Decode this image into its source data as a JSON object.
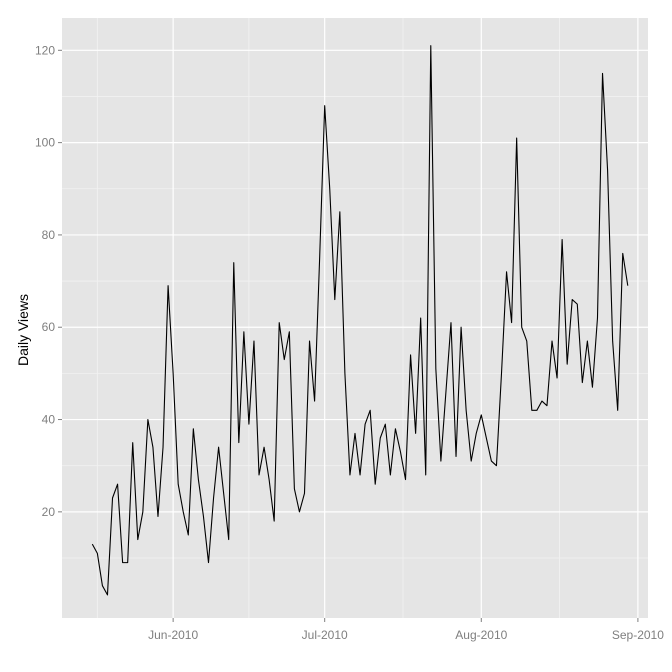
{
  "chart_data": {
    "type": "line",
    "title": "",
    "xlabel": "",
    "ylabel": "Daily Views",
    "x_start": "2010-05-16",
    "x_ticks": [
      {
        "date": "2010-06-01",
        "label": "Jun-2010"
      },
      {
        "date": "2010-07-01",
        "label": "Jul-2010"
      },
      {
        "date": "2010-08-01",
        "label": "Aug-2010"
      },
      {
        "date": "2010-09-01",
        "label": "Sep-2010"
      }
    ],
    "y_ticks": [
      20,
      40,
      60,
      80,
      100,
      120
    ],
    "xlim": [
      "2010-05-10",
      "2010-09-03"
    ],
    "ylim": [
      -3,
      127
    ],
    "grid": true,
    "colors": {
      "panel": "#e5e5e5",
      "grid_major": "#ffffff",
      "grid_minor": "#f2f2f2",
      "line": "#000000"
    },
    "series": [
      {
        "values": [
          13,
          11,
          4,
          2,
          23,
          26,
          9,
          9,
          35,
          14,
          20,
          40,
          34,
          19,
          34,
          69,
          50,
          26,
          20,
          15,
          38,
          27,
          19,
          9,
          23,
          34,
          24,
          14,
          74,
          35,
          59,
          39,
          57,
          28,
          34,
          27,
          18,
          61,
          53,
          59,
          25,
          20,
          24,
          57,
          44,
          75,
          108,
          90,
          66,
          85,
          50,
          28,
          37,
          28,
          39,
          42,
          26,
          36,
          39,
          28,
          38,
          33,
          27,
          54,
          37,
          62,
          28,
          121,
          51,
          31,
          46,
          61,
          32,
          60,
          42,
          31,
          37,
          41,
          36,
          31,
          30,
          50,
          72,
          61,
          101,
          60,
          57,
          42,
          42,
          44,
          43,
          57,
          49,
          79,
          52,
          66,
          65,
          48,
          57,
          47,
          62,
          115,
          94,
          57,
          42,
          76,
          69
        ]
      }
    ]
  }
}
